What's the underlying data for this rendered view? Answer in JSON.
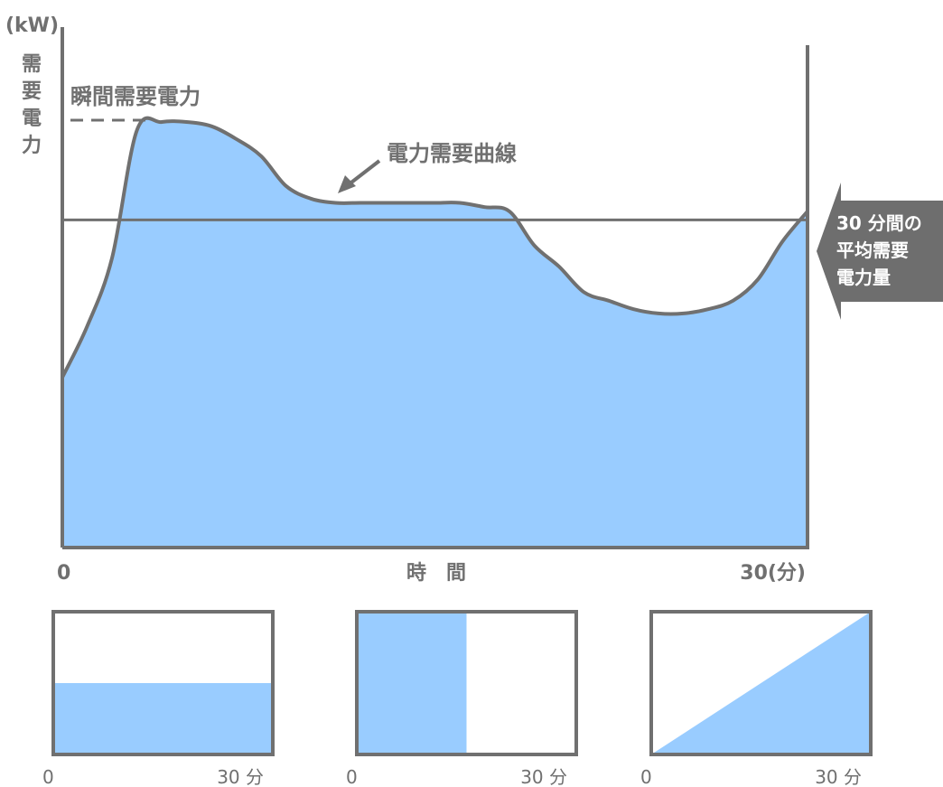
{
  "colors": {
    "fill": "#99CCFF",
    "stroke": "#707070",
    "text": "#707070",
    "callout_bg": "#6E6E6E",
    "callout_text": "#FFFFFF"
  },
  "chart_data": [
    {
      "type": "area",
      "title": "",
      "unit": "(kW)",
      "ylabel": "需要電力",
      "xlabel": "時　間",
      "x_ticks": [
        "0",
        "30(分)"
      ],
      "xlim": [
        0,
        30
      ],
      "x": [
        0,
        1,
        2,
        3,
        4,
        5,
        6,
        7,
        8,
        9,
        10,
        11,
        12,
        13,
        14,
        15,
        16,
        17,
        18,
        19,
        20,
        21,
        22,
        23,
        24,
        25,
        26,
        27,
        28,
        29,
        30
      ],
      "y": [
        0.4,
        0.52,
        0.68,
        0.98,
        1.0,
        1.0,
        0.99,
        0.96,
        0.92,
        0.85,
        0.82,
        0.81,
        0.81,
        0.81,
        0.81,
        0.81,
        0.81,
        0.8,
        0.79,
        0.71,
        0.66,
        0.6,
        0.58,
        0.56,
        0.55,
        0.55,
        0.56,
        0.58,
        0.63,
        0.72,
        0.79
      ],
      "average_level": 0.77,
      "annotations": [
        {
          "text": "瞬間需要電力",
          "target": "peak"
        },
        {
          "text": "電力需要曲線",
          "target": "curve"
        },
        {
          "text": "30 分間の\n平均需要\n電力量",
          "target": "average-line"
        }
      ]
    },
    {
      "type": "area",
      "x_ticks": [
        "0",
        "30 分"
      ],
      "xlim": [
        0,
        30
      ],
      "x": [
        0,
        30
      ],
      "y": [
        0.5,
        0.5
      ]
    },
    {
      "type": "area",
      "x_ticks": [
        "0",
        "30 分"
      ],
      "xlim": [
        0,
        30
      ],
      "x": [
        0,
        15,
        15,
        30
      ],
      "y": [
        1.0,
        1.0,
        0,
        0
      ]
    },
    {
      "type": "area",
      "x_ticks": [
        "0",
        "30 分"
      ],
      "xlim": [
        0,
        30
      ],
      "x": [
        0,
        30
      ],
      "y": [
        0,
        1.0
      ]
    }
  ]
}
